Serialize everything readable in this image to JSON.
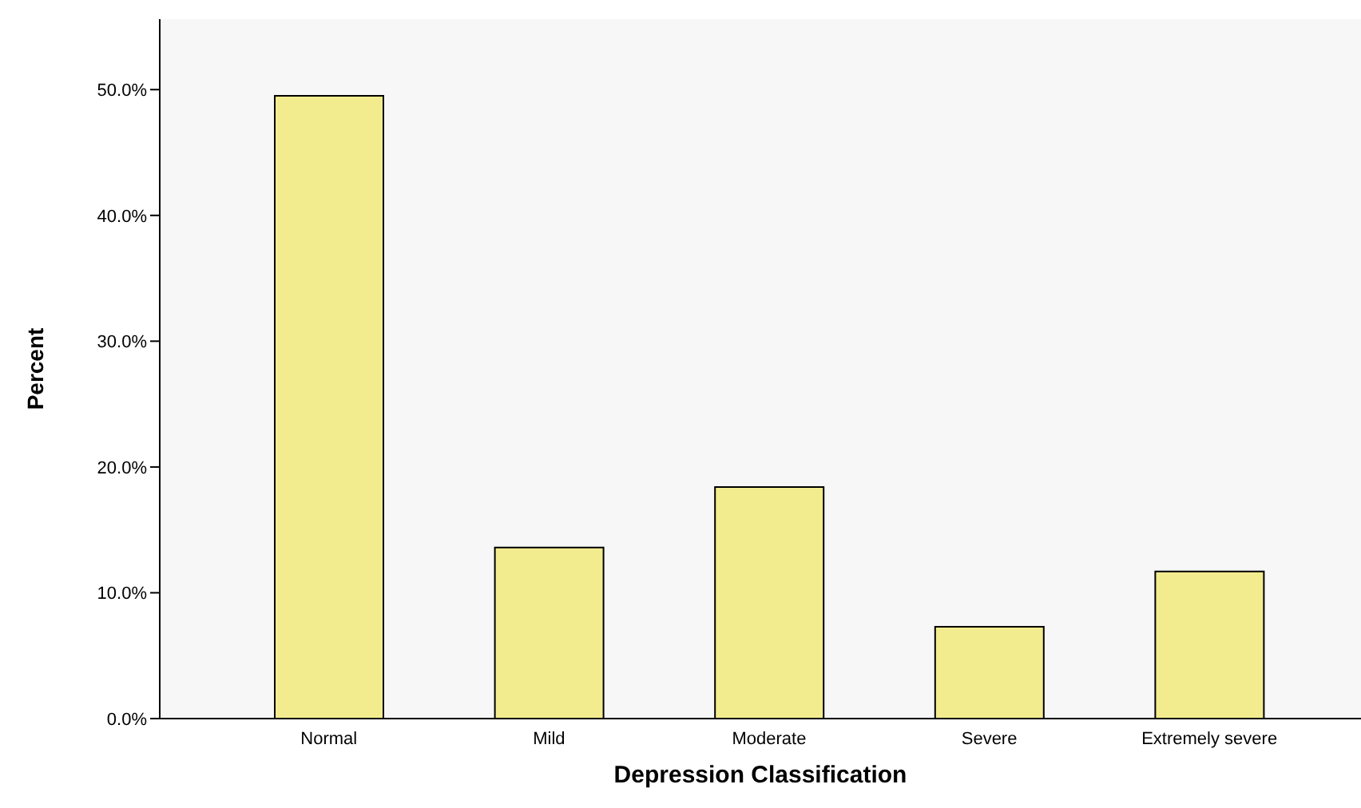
{
  "chart_data": {
    "type": "bar",
    "xlabel": "Depression Classification",
    "ylabel": "Percent",
    "categories": [
      "Normal",
      "Mild",
      "Moderate",
      "Severe",
      "Extremely severe"
    ],
    "values": [
      49.5,
      13.6,
      18.4,
      7.3,
      11.7
    ],
    "color": "#f3ec8f",
    "ylim": [
      0,
      55.6
    ],
    "yticks": [
      {
        "value": 0,
        "label": "0.0%"
      },
      {
        "value": 10,
        "label": "10.0%"
      },
      {
        "value": 20,
        "label": "20.0%"
      },
      {
        "value": 30,
        "label": "30.0%"
      },
      {
        "value": 40,
        "label": "40.0%"
      },
      {
        "value": 50,
        "label": "50.0%"
      }
    ],
    "grid": false
  }
}
